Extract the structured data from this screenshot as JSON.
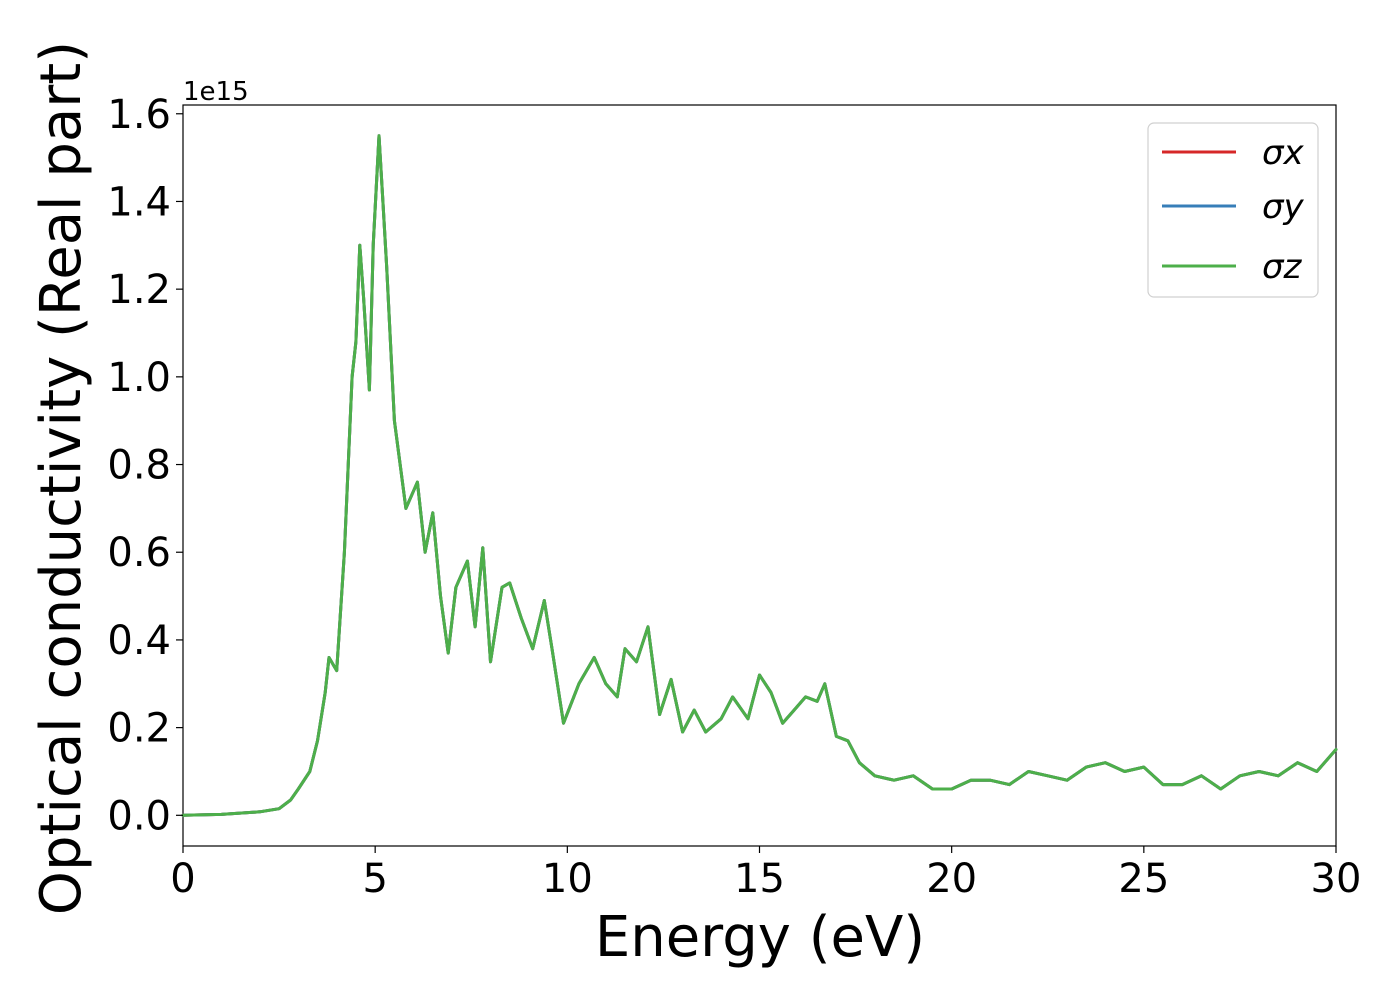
{
  "chart_data": {
    "type": "line",
    "title": "",
    "xlabel": "Energy (eV)",
    "ylabel": "Optical conductivity (Real part)",
    "y_offset_text": "1e15",
    "xlim": [
      0,
      30
    ],
    "ylim": [
      -0.07,
      1.62
    ],
    "x_ticks": [
      0,
      5,
      10,
      15,
      20,
      25,
      30
    ],
    "y_ticks": [
      0.0,
      0.2,
      0.4,
      0.6,
      0.8,
      1.0,
      1.2,
      1.4,
      1.6
    ],
    "x_tick_labels": [
      "0",
      "5",
      "10",
      "15",
      "20",
      "25",
      "30"
    ],
    "y_tick_labels": [
      "0.0",
      "0.2",
      "0.4",
      "0.6",
      "0.8",
      "1.0",
      "1.2",
      "1.4",
      "1.6"
    ],
    "grid": false,
    "legend_position": "top-right",
    "x": [
      0,
      1,
      2,
      2.5,
      2.8,
      3.0,
      3.3,
      3.5,
      3.7,
      3.8,
      4.0,
      4.2,
      4.4,
      4.5,
      4.6,
      4.7,
      4.85,
      4.95,
      5.1,
      5.2,
      5.3,
      5.5,
      5.8,
      6.0,
      6.1,
      6.3,
      6.5,
      6.7,
      6.9,
      7.1,
      7.4,
      7.6,
      7.8,
      8.0,
      8.3,
      8.5,
      8.8,
      9.1,
      9.4,
      9.6,
      9.9,
      10.3,
      10.7,
      11.0,
      11.3,
      11.5,
      11.8,
      12.1,
      12.4,
      12.7,
      13.0,
      13.3,
      13.6,
      14.0,
      14.3,
      14.7,
      15.0,
      15.3,
      15.6,
      15.9,
      16.2,
      16.5,
      16.7,
      17.0,
      17.3,
      17.6,
      18.0,
      18.5,
      19.0,
      19.5,
      20.0,
      20.5,
      21.0,
      21.5,
      22.0,
      22.5,
      23.0,
      23.5,
      24.0,
      24.5,
      25.0,
      25.5,
      26.0,
      26.5,
      27.0,
      27.5,
      28.0,
      28.5,
      29.0,
      29.5,
      30.0
    ],
    "series": [
      {
        "name": "σx",
        "color": "#d62728",
        "values": [
          0.0,
          0.002,
          0.008,
          0.015,
          0.035,
          0.06,
          0.1,
          0.17,
          0.28,
          0.36,
          0.33,
          0.6,
          1.0,
          1.08,
          1.3,
          1.18,
          0.97,
          1.3,
          1.55,
          1.4,
          1.25,
          0.9,
          0.7,
          0.74,
          0.76,
          0.6,
          0.69,
          0.5,
          0.37,
          0.52,
          0.58,
          0.43,
          0.61,
          0.35,
          0.52,
          0.53,
          0.45,
          0.38,
          0.49,
          0.38,
          0.21,
          0.3,
          0.36,
          0.3,
          0.27,
          0.38,
          0.35,
          0.43,
          0.23,
          0.31,
          0.19,
          0.24,
          0.19,
          0.22,
          0.27,
          0.22,
          0.32,
          0.28,
          0.21,
          0.24,
          0.27,
          0.26,
          0.3,
          0.18,
          0.17,
          0.12,
          0.09,
          0.08,
          0.09,
          0.06,
          0.06,
          0.08,
          0.08,
          0.07,
          0.1,
          0.09,
          0.08,
          0.11,
          0.12,
          0.1,
          0.11,
          0.07,
          0.07,
          0.09,
          0.06,
          0.09,
          0.1,
          0.09,
          0.12,
          0.1,
          0.15
        ]
      },
      {
        "name": "σy",
        "color": "#377eb8",
        "values": [
          0.0,
          0.002,
          0.008,
          0.015,
          0.035,
          0.06,
          0.1,
          0.17,
          0.28,
          0.36,
          0.33,
          0.6,
          1.0,
          1.08,
          1.3,
          1.18,
          0.97,
          1.3,
          1.55,
          1.4,
          1.25,
          0.9,
          0.7,
          0.74,
          0.76,
          0.6,
          0.69,
          0.5,
          0.37,
          0.52,
          0.58,
          0.43,
          0.61,
          0.35,
          0.52,
          0.53,
          0.45,
          0.38,
          0.49,
          0.38,
          0.21,
          0.3,
          0.36,
          0.3,
          0.27,
          0.38,
          0.35,
          0.43,
          0.23,
          0.31,
          0.19,
          0.24,
          0.19,
          0.22,
          0.27,
          0.22,
          0.32,
          0.28,
          0.21,
          0.24,
          0.27,
          0.26,
          0.3,
          0.18,
          0.17,
          0.12,
          0.09,
          0.08,
          0.09,
          0.06,
          0.06,
          0.08,
          0.08,
          0.07,
          0.1,
          0.09,
          0.08,
          0.11,
          0.12,
          0.1,
          0.11,
          0.07,
          0.07,
          0.09,
          0.06,
          0.09,
          0.1,
          0.09,
          0.12,
          0.1,
          0.15
        ]
      },
      {
        "name": "σz",
        "color": "#4daf4a",
        "values": [
          0.0,
          0.002,
          0.008,
          0.015,
          0.035,
          0.06,
          0.1,
          0.17,
          0.28,
          0.36,
          0.33,
          0.6,
          1.0,
          1.08,
          1.3,
          1.18,
          0.97,
          1.3,
          1.55,
          1.4,
          1.25,
          0.9,
          0.7,
          0.74,
          0.76,
          0.6,
          0.69,
          0.5,
          0.37,
          0.52,
          0.58,
          0.43,
          0.61,
          0.35,
          0.52,
          0.53,
          0.45,
          0.38,
          0.49,
          0.38,
          0.21,
          0.3,
          0.36,
          0.3,
          0.27,
          0.38,
          0.35,
          0.43,
          0.23,
          0.31,
          0.19,
          0.24,
          0.19,
          0.22,
          0.27,
          0.22,
          0.32,
          0.28,
          0.21,
          0.24,
          0.27,
          0.26,
          0.3,
          0.18,
          0.17,
          0.12,
          0.09,
          0.08,
          0.09,
          0.06,
          0.06,
          0.08,
          0.08,
          0.07,
          0.1,
          0.09,
          0.08,
          0.11,
          0.12,
          0.1,
          0.11,
          0.07,
          0.07,
          0.09,
          0.06,
          0.09,
          0.1,
          0.09,
          0.12,
          0.1,
          0.15
        ]
      }
    ]
  }
}
